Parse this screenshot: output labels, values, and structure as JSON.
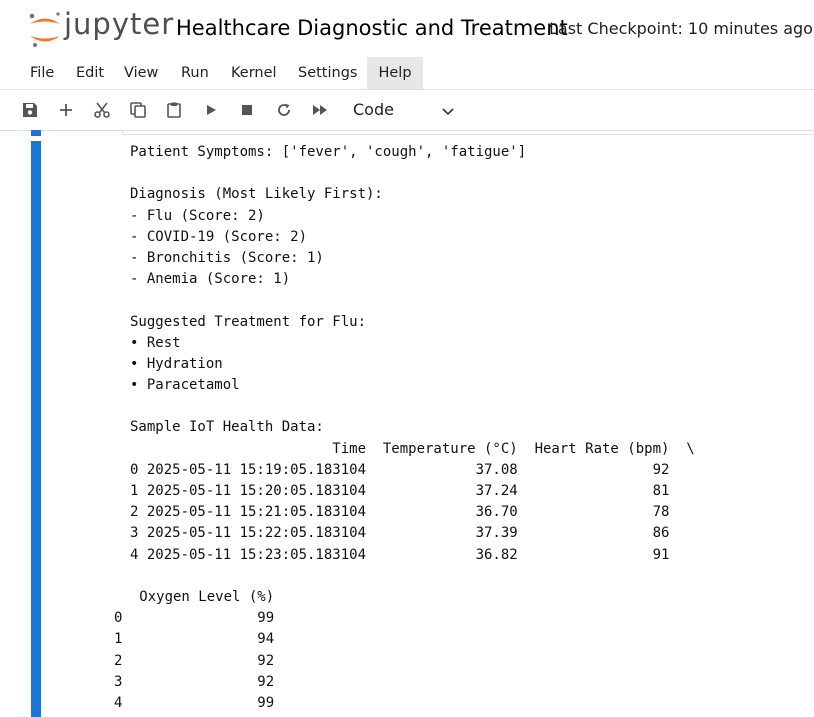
{
  "header": {
    "logo_text": "jupyter",
    "notebook_title": "Healthcare Diagnostic and Treatment",
    "checkpoint": "Last Checkpoint: 10 minutes ago",
    "logo_colors": {
      "orange": "#f37726",
      "gray": "#767677"
    }
  },
  "menu": {
    "items": [
      "File",
      "Edit",
      "View",
      "Run",
      "Kernel",
      "Settings",
      "Help"
    ],
    "active": "Help"
  },
  "toolbar": {
    "buttons": [
      "save-icon",
      "add-icon",
      "cut-icon",
      "copy-icon",
      "paste-icon",
      "run-icon",
      "stop-icon",
      "restart-icon",
      "fast-forward-icon"
    ],
    "cell_type": "Code"
  },
  "cell": {
    "accent_color": "#1976d2"
  },
  "output": {
    "lines": [
      "Patient Symptoms: ['fever', 'cough', 'fatigue']",
      "",
      "Diagnosis (Most Likely First):",
      "- Flu (Score: 2)",
      "- COVID-19 (Score: 2)",
      "- Bronchitis (Score: 1)",
      "- Anemia (Score: 1)",
      "",
      "Suggested Treatment for Flu:",
      "• Rest",
      "• Hydration",
      "• Paracetamol",
      "",
      "Sample IoT Health Data:",
      "                        Time  Temperature (°C)  Heart Rate (bpm)  \\",
      "0 2025-05-11 15:19:05.183104             37.08                92",
      "1 2025-05-11 15:20:05.183104             37.24                81",
      "2 2025-05-11 15:21:05.183104             36.70                78",
      "3 2025-05-11 15:22:05.183104             37.39                86",
      "4 2025-05-11 15:23:05.183104             36.82                91",
      "",
      "   Oxygen Level (%)",
      "0                99",
      "1                94",
      "2                92",
      "3                92",
      "4                99"
    ],
    "dedented_from": 21
  }
}
